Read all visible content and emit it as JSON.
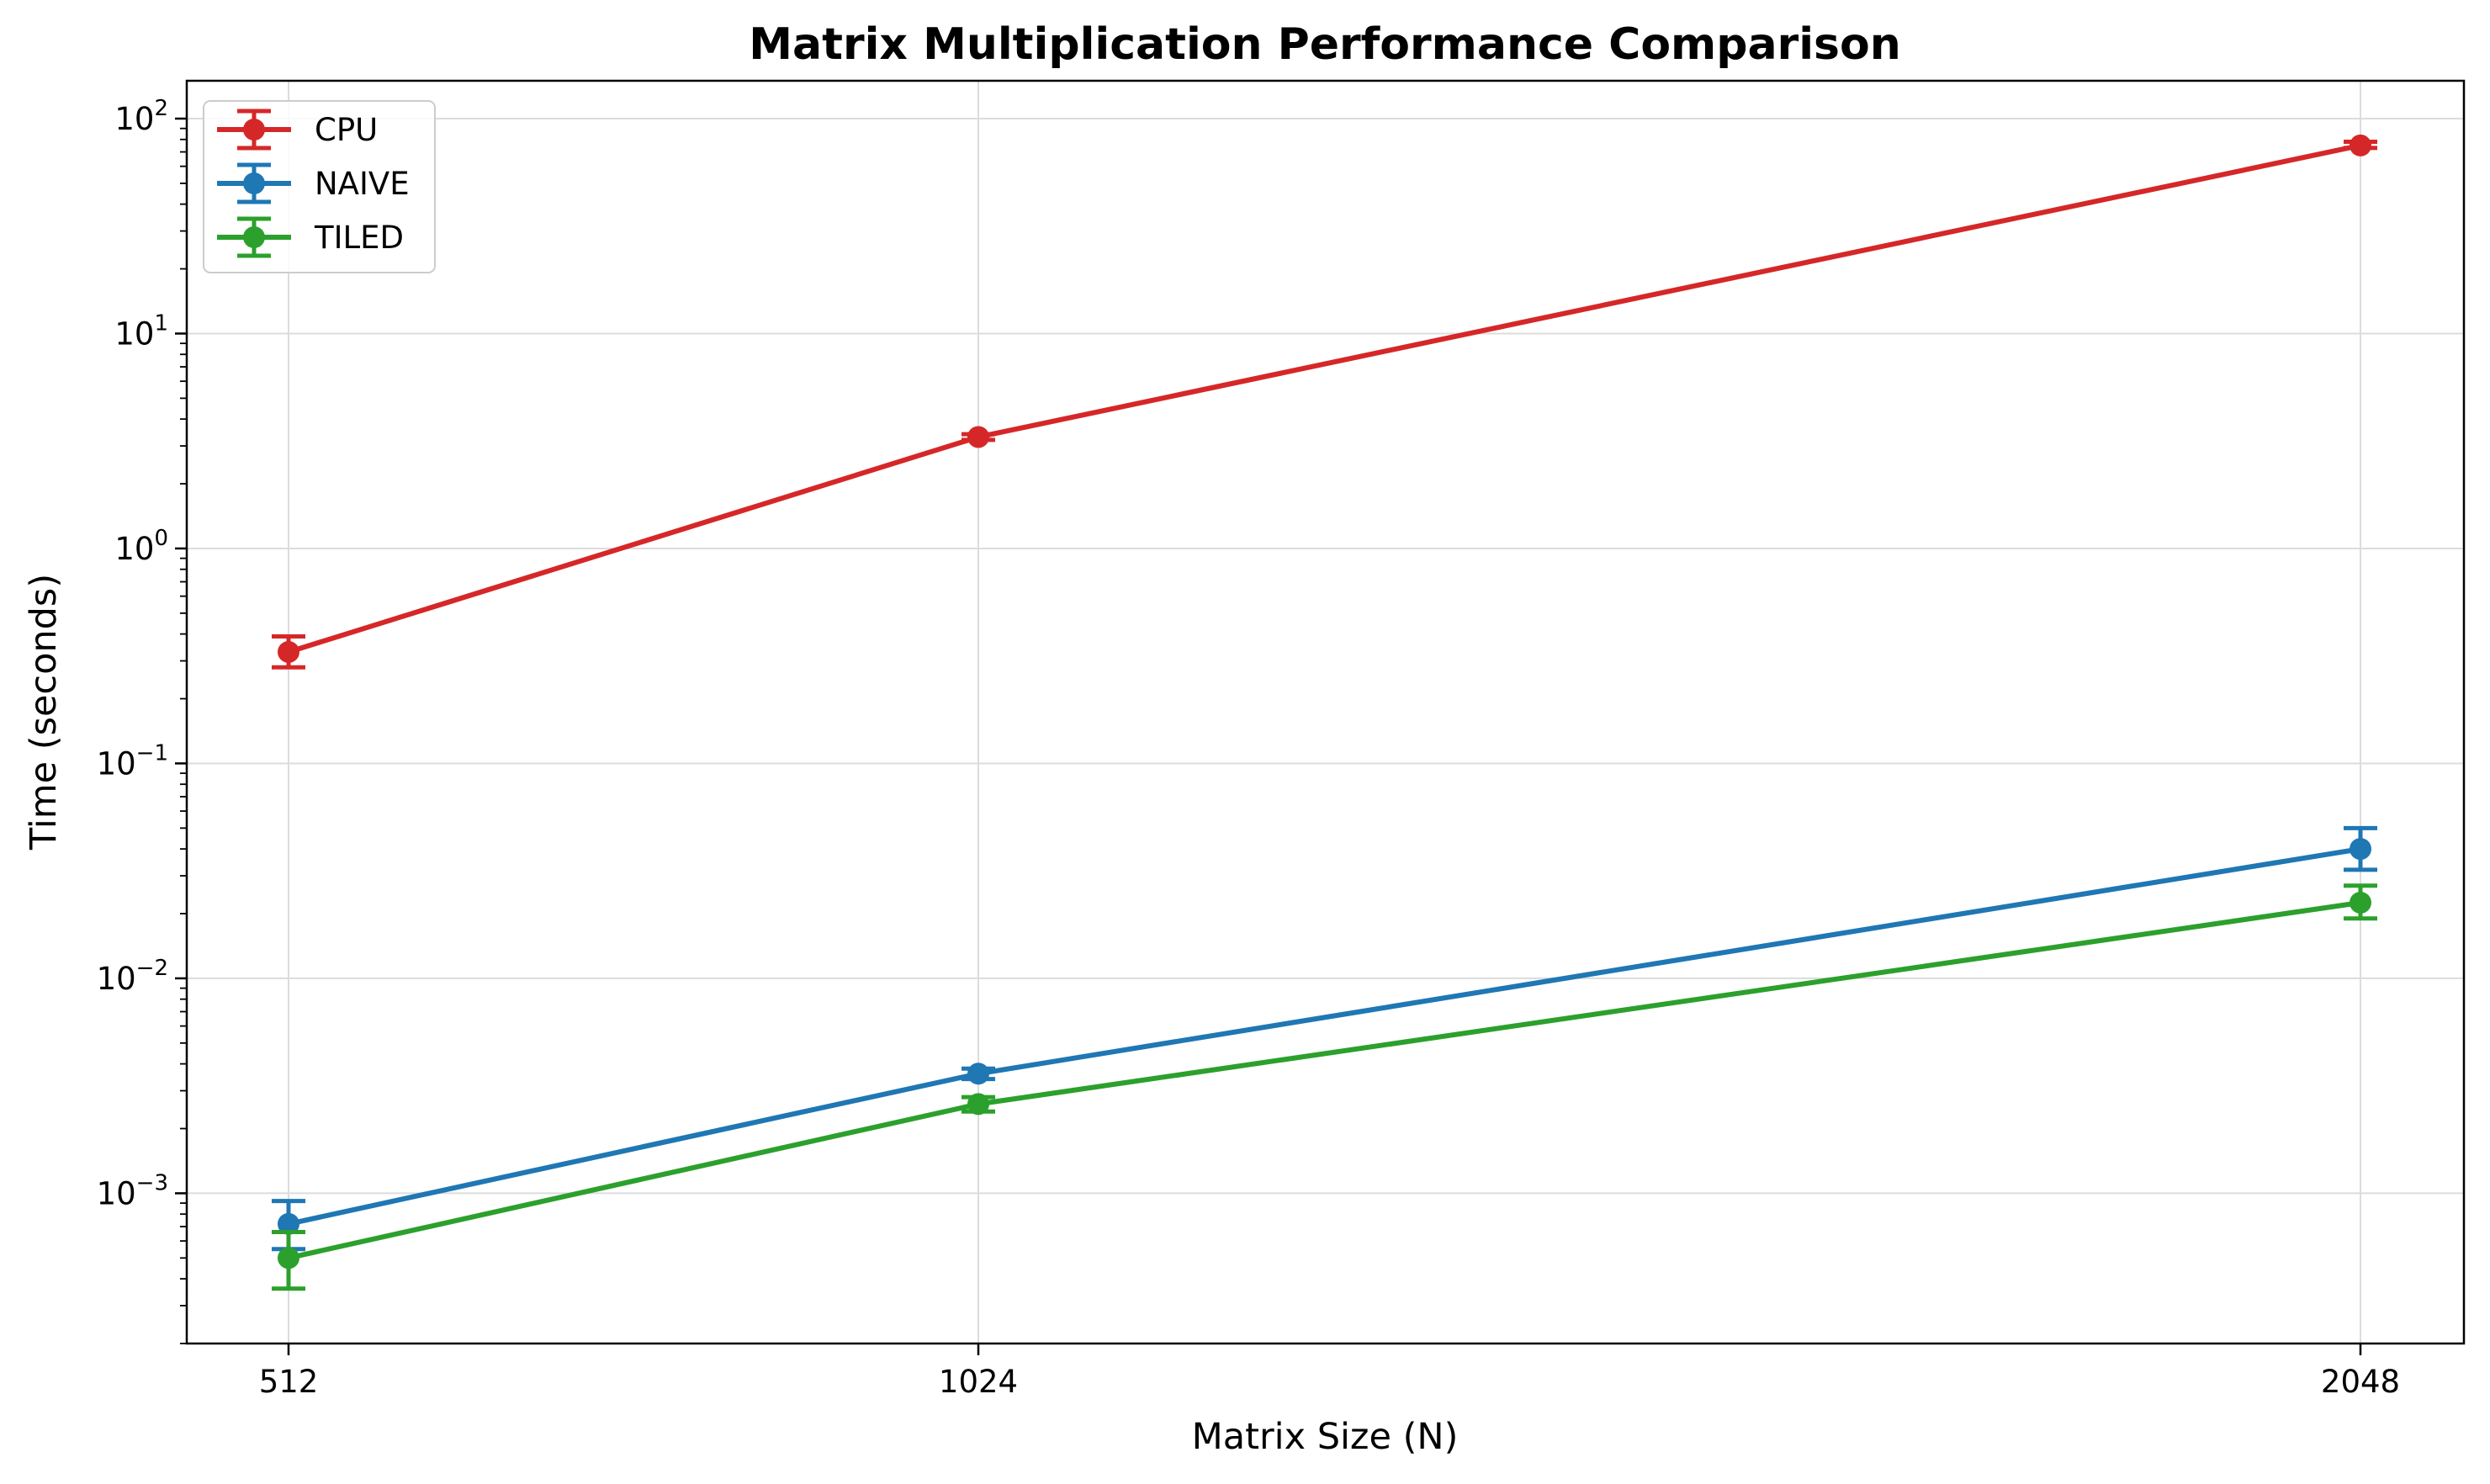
{
  "chart_data": {
    "type": "line",
    "title": "Matrix Multiplication Performance Comparison",
    "xlabel": "Matrix Size (N)",
    "ylabel": "Time (seconds)",
    "x": [
      512,
      1024,
      2048
    ],
    "x_tick_labels": [
      "512",
      "1024",
      "2048"
    ],
    "y_scale": "log",
    "ylim": [
      0.0002,
      150
    ],
    "y_ticks": [
      {
        "value": 0.001,
        "base": "10",
        "exp": "−3"
      },
      {
        "value": 0.01,
        "base": "10",
        "exp": "−2"
      },
      {
        "value": 0.1,
        "base": "10",
        "exp": "−1"
      },
      {
        "value": 1,
        "base": "10",
        "exp": "0"
      },
      {
        "value": 10,
        "base": "10",
        "exp": "1"
      },
      {
        "value": 100,
        "base": "10",
        "exp": "2"
      }
    ],
    "grid": true,
    "legend_position": "top-left",
    "series": [
      {
        "name": "CPU",
        "color": "#d62728",
        "values": [
          0.33,
          3.3,
          75
        ],
        "err_low": [
          0.28,
          3.2,
          73
        ],
        "err_high": [
          0.39,
          3.4,
          78
        ]
      },
      {
        "name": "NAIVE",
        "color": "#1f77b4",
        "values": [
          0.00072,
          0.0036,
          0.04
        ],
        "err_low": [
          0.00055,
          0.0034,
          0.032
        ],
        "err_high": [
          0.00092,
          0.0038,
          0.05
        ]
      },
      {
        "name": "TILED",
        "color": "#2ca02c",
        "values": [
          0.0005,
          0.0026,
          0.0225
        ],
        "err_low": [
          0.00036,
          0.0024,
          0.019
        ],
        "err_high": [
          0.00066,
          0.0028,
          0.027
        ]
      }
    ]
  }
}
